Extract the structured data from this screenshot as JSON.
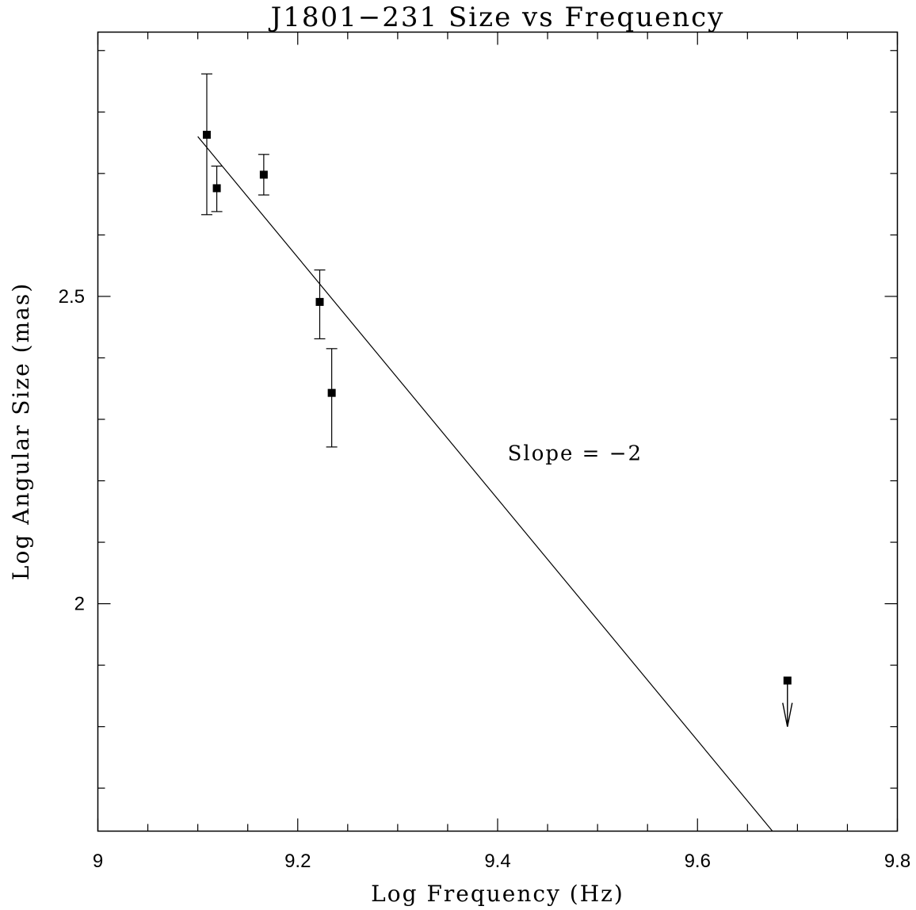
{
  "chart_data": {
    "type": "scatter",
    "title": "J1801−231 Size vs Frequency",
    "xlabel": "Log Frequency (Hz)",
    "ylabel": "Log Angular Size (mas)",
    "xlim": [
      9,
      9.8
    ],
    "ylim": [
      1.63,
      2.93
    ],
    "x_ticks": [
      9,
      9.2,
      9.4,
      9.6,
      9.8
    ],
    "x_tick_labels": [
      "9",
      "9.2",
      "9.4",
      "9.6",
      "9.8"
    ],
    "x_minor_step": 0.05,
    "y_ticks": [
      2,
      2.5
    ],
    "y_tick_labels": [
      "2",
      "2.5"
    ],
    "y_minor_step": 0.1,
    "grid": false,
    "series": [
      {
        "points": [
          {
            "x": 9.109,
            "y": 2.763,
            "ylo": 2.633,
            "yhi": 2.862
          },
          {
            "x": 9.119,
            "y": 2.676,
            "ylo": 2.638,
            "yhi": 2.712
          },
          {
            "x": 9.166,
            "y": 2.698,
            "ylo": 2.665,
            "yhi": 2.731
          },
          {
            "x": 9.222,
            "y": 2.491,
            "ylo": 2.431,
            "yhi": 2.543
          },
          {
            "x": 9.234,
            "y": 2.343,
            "ylo": 2.255,
            "yhi": 2.415
          }
        ]
      }
    ],
    "upper_limits": [
      {
        "x": 9.69,
        "y": 1.875,
        "arrow_to": 1.8
      }
    ],
    "fit_line": {
      "slope": -2,
      "x_start": 9.1,
      "y_start": 2.76,
      "x_end": 9.675,
      "y_end": 1.63
    },
    "annotations": [
      {
        "text": "Slope = −2",
        "x": 9.41,
        "y": 2.245
      }
    ]
  }
}
